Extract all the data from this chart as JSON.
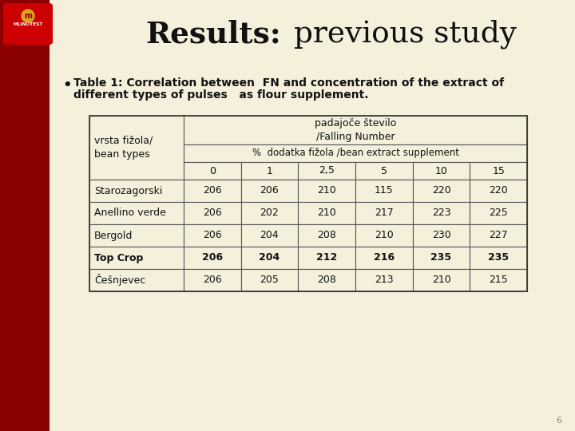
{
  "title_bold": "Results:",
  "title_light": " previous study",
  "bullet_text_line1": "Table 1: Correlation between  FN and concentration of the extract of",
  "bullet_text_line2": "different types of pulses   as flour supplement.",
  "bg_color": "#F5F0DC",
  "left_bar_color": "#8B0000",
  "table_header1": "padajoče število\n/Falling Number",
  "table_subheader": "%  dodatka fižola /bean extract supplement",
  "table_col1_label": "vrsta fižola/\nbean types",
  "table_cols": [
    "0",
    "1",
    "2,5",
    "5",
    "10",
    "15"
  ],
  "table_rows": [
    [
      "Starozagorski",
      "206",
      "206",
      "210",
      "115",
      "220",
      "220"
    ],
    [
      "Anellino verde",
      "206",
      "202",
      "210",
      "217",
      "223",
      "225"
    ],
    [
      "Bergold",
      "206",
      "204",
      "208",
      "210",
      "230",
      "227"
    ],
    [
      "Top Crop",
      "206",
      "204",
      "212",
      "216",
      "235",
      "235"
    ],
    [
      "Češnjevec",
      "206",
      "205",
      "208",
      "213",
      "210",
      "215"
    ]
  ],
  "bold_row_index": 3,
  "page_number": "6",
  "table_border_color": "#555555",
  "table_bg_color": "#F5F0DC"
}
